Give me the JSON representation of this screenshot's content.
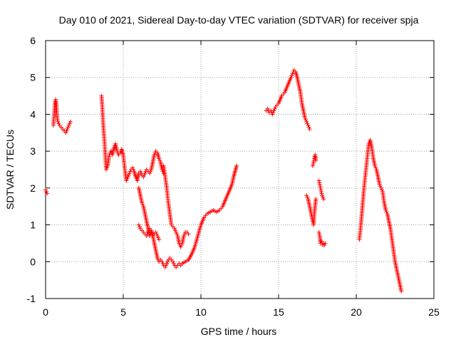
{
  "chart_data": {
    "type": "scatter",
    "title": "Day 010 of 2021, Sidereal Day-to-day VTEC variation (SDTVAR) for receiver spja",
    "xlabel": "GPS time / hours",
    "ylabel": "SDTVAR / TECUs",
    "xlim": [
      0,
      25
    ],
    "ylim": [
      -1,
      6
    ],
    "xticks": [
      0,
      5,
      10,
      15,
      20,
      25
    ],
    "yticks": [
      -1,
      0,
      1,
      2,
      3,
      4,
      5,
      6
    ],
    "grid": true,
    "marker": "+",
    "colors": {
      "series": "#ff0000",
      "grid": "#a0a0a0",
      "axis": "#000000"
    },
    "series": [
      {
        "name": "SDTVAR",
        "segments": [
          {
            "x": [
              0.0,
              0.05,
              0.1
            ],
            "y": [
              1.95,
              1.9,
              1.85
            ]
          },
          {
            "x": [
              0.5,
              0.55,
              0.6,
              0.65,
              0.7,
              0.75,
              0.8,
              0.9,
              1.0,
              1.1,
              1.2,
              1.3,
              1.4,
              1.5,
              1.6
            ],
            "y": [
              3.7,
              4.0,
              4.3,
              4.4,
              4.2,
              3.9,
              3.8,
              3.7,
              3.65,
              3.6,
              3.55,
              3.5,
              3.6,
              3.7,
              3.8
            ]
          },
          {
            "x": [
              3.6,
              3.65,
              3.7,
              3.75,
              3.8,
              3.9,
              4.0,
              4.1,
              4.2,
              4.3,
              4.4,
              4.5,
              4.6,
              4.7,
              4.8,
              4.9,
              5.0,
              5.1,
              5.2,
              5.3,
              5.4,
              5.5,
              5.6,
              5.7,
              5.8,
              5.9,
              6.0,
              6.1,
              6.2,
              6.3,
              6.4,
              6.5,
              6.6,
              6.7,
              6.8,
              6.9,
              7.0,
              7.1,
              7.2,
              7.3,
              7.4,
              7.5,
              7.6
            ],
            "y": [
              4.5,
              4.2,
              3.8,
              3.5,
              3.2,
              2.5,
              2.6,
              2.9,
              3.0,
              2.9,
              3.1,
              3.2,
              3.0,
              2.9,
              2.95,
              3.05,
              2.9,
              2.5,
              2.2,
              2.3,
              2.4,
              2.5,
              2.55,
              2.45,
              2.3,
              2.2,
              2.4,
              2.45,
              2.35,
              2.3,
              2.4,
              2.5,
              2.45,
              2.4,
              2.5,
              2.7,
              2.9,
              3.0,
              2.95,
              2.8,
              2.7,
              2.5,
              2.4
            ]
          },
          {
            "x": [
              6.0,
              6.1,
              6.2,
              6.3,
              6.4,
              6.5,
              6.6,
              6.7,
              6.8,
              6.9,
              7.0,
              7.1,
              7.2,
              7.3
            ],
            "y": [
              2.0,
              1.8,
              1.6,
              1.5,
              1.3,
              1.1,
              0.9,
              0.7,
              0.8,
              0.7,
              0.75,
              0.8,
              0.7,
              0.6
            ]
          },
          {
            "x": [
              6.0,
              6.1,
              6.2,
              6.3,
              6.4,
              6.5,
              6.6,
              6.7,
              6.8,
              6.9,
              7.0,
              7.1,
              7.2,
              7.3,
              7.4,
              7.5,
              7.6,
              7.7,
              7.8,
              7.9,
              8.0,
              8.1,
              8.2,
              8.3,
              8.4,
              8.5,
              8.6,
              8.7,
              8.8
            ],
            "y": [
              1.0,
              0.9,
              0.85,
              0.8,
              0.75,
              0.7,
              0.8,
              0.9,
              0.85,
              0.7,
              0.5,
              0.3,
              0.1,
              0.0,
              0.05,
              0.0,
              -0.1,
              -0.15,
              -0.05,
              0.05,
              0.1,
              0.05,
              0.0,
              -0.1,
              -0.15,
              -0.1,
              -0.05,
              -0.1,
              -0.05
            ]
          },
          {
            "x": [
              7.6,
              7.7,
              7.8,
              7.9,
              8.0,
              8.1,
              8.2,
              8.3,
              8.4,
              8.5,
              8.6,
              8.7,
              8.8,
              8.9,
              9.0,
              9.1,
              9.2
            ],
            "y": [
              2.6,
              2.3,
              2.0,
              1.6,
              1.3,
              1.0,
              0.95,
              0.9,
              0.8,
              0.7,
              0.5,
              0.4,
              0.5,
              0.7,
              0.8,
              0.8,
              0.75
            ]
          },
          {
            "x": [
              8.8,
              9.0,
              9.2,
              9.4,
              9.6,
              9.8,
              10.0,
              10.2,
              10.4,
              10.6,
              10.8,
              11.0,
              11.2,
              11.4,
              11.6,
              11.8,
              12.0,
              12.1,
              12.2,
              12.3
            ],
            "y": [
              -0.05,
              0.0,
              0.05,
              0.2,
              0.4,
              0.7,
              1.0,
              1.2,
              1.3,
              1.35,
              1.4,
              1.35,
              1.4,
              1.5,
              1.7,
              1.9,
              2.1,
              2.3,
              2.45,
              2.6
            ]
          },
          {
            "x": [
              14.2,
              14.3,
              14.4,
              14.5,
              14.6,
              14.7,
              14.8,
              15.0,
              15.2,
              15.4,
              15.6,
              15.8,
              15.9,
              16.0,
              16.1,
              16.2,
              16.3,
              16.4,
              16.5,
              16.6,
              16.7,
              16.8,
              16.9,
              17.0
            ],
            "y": [
              4.1,
              4.15,
              4.05,
              4.1,
              4.0,
              4.1,
              4.2,
              4.3,
              4.5,
              4.6,
              4.8,
              5.0,
              5.1,
              5.2,
              5.15,
              5.0,
              4.8,
              4.6,
              4.3,
              4.1,
              3.9,
              3.8,
              3.7,
              3.6
            ]
          },
          {
            "x": [
              16.8,
              16.9,
              17.0,
              17.1,
              17.2,
              17.25,
              17.3,
              17.35,
              17.4
            ],
            "y": [
              1.8,
              1.7,
              1.5,
              1.3,
              1.1,
              1.0,
              1.3,
              1.5,
              1.7
            ]
          },
          {
            "x": [
              17.2,
              17.25,
              17.3,
              17.35,
              17.4
            ],
            "y": [
              2.6,
              2.7,
              2.8,
              2.9,
              2.75
            ]
          },
          {
            "x": [
              17.6,
              17.65,
              17.7,
              17.75,
              17.8,
              17.85,
              17.9
            ],
            "y": [
              2.2,
              2.1,
              2.0,
              1.9,
              1.8,
              1.75,
              1.7
            ]
          },
          {
            "x": [
              17.6,
              17.65,
              17.7,
              17.75,
              17.8,
              17.85,
              17.9,
              17.95,
              18.0
            ],
            "y": [
              0.8,
              0.7,
              0.5,
              0.55,
              0.5,
              0.45,
              0.5,
              0.45,
              0.5
            ]
          },
          {
            "x": [
              20.2,
              20.3,
              20.4,
              20.5,
              20.6,
              20.7,
              20.8,
              20.9,
              21.0,
              21.1,
              21.2,
              21.3,
              21.4,
              21.5,
              21.6,
              21.7,
              21.8,
              21.9,
              22.0,
              22.1,
              22.2,
              22.3,
              22.4,
              22.5,
              22.6,
              22.7,
              22.8,
              22.9
            ],
            "y": [
              0.6,
              1.0,
              1.5,
              2.0,
              2.4,
              2.8,
              3.2,
              3.3,
              3.1,
              2.8,
              2.6,
              2.5,
              2.3,
              2.1,
              2.0,
              1.9,
              1.6,
              1.4,
              1.3,
              1.1,
              0.9,
              0.6,
              0.3,
              0.0,
              -0.2,
              -0.4,
              -0.6,
              -0.8
            ]
          }
        ]
      }
    ]
  }
}
